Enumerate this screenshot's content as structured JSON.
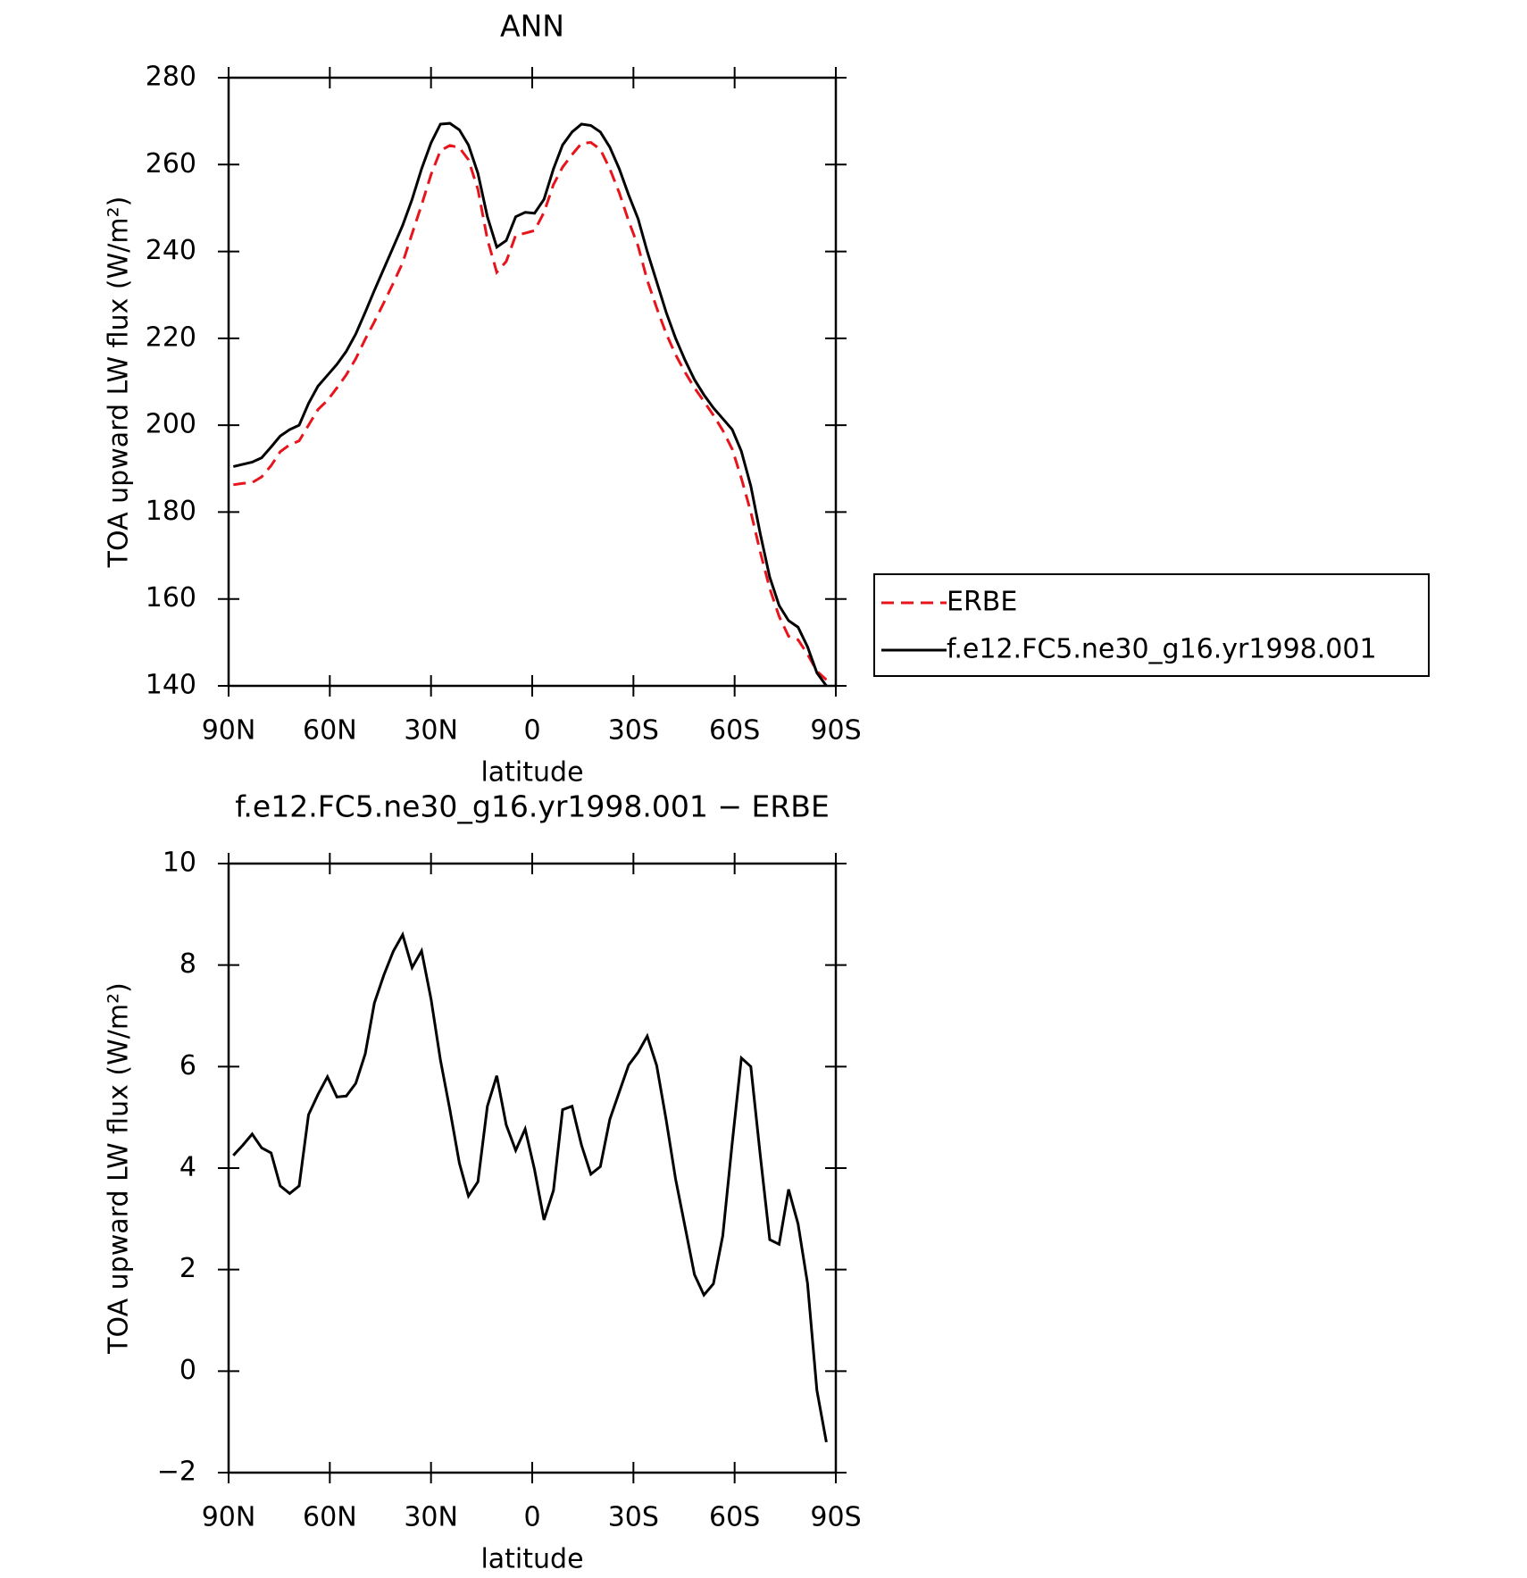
{
  "chart_data": [
    {
      "type": "line",
      "title": "ANN",
      "xlabel": "latitude",
      "ylabel": "TOA upward LW flux (W/m²)",
      "x": [
        88.6,
        85.8,
        83.0,
        80.2,
        77.4,
        74.7,
        71.9,
        69.1,
        66.3,
        63.5,
        60.7,
        57.9,
        55.1,
        52.3,
        49.5,
        46.8,
        44.0,
        41.2,
        38.4,
        35.6,
        32.8,
        30.0,
        27.2,
        24.4,
        21.6,
        18.9,
        16.1,
        13.3,
        10.5,
        7.7,
        4.9,
        2.1,
        -0.7,
        -3.5,
        -6.3,
        -9.0,
        -11.8,
        -14.6,
        -17.4,
        -20.2,
        -23.0,
        -25.8,
        -28.6,
        -31.4,
        -34.1,
        -36.9,
        -39.7,
        -42.5,
        -45.3,
        -48.1,
        -50.9,
        -53.7,
        -56.5,
        -59.3,
        -62.0,
        -64.8,
        -67.6,
        -70.4,
        -73.2,
        -76.0,
        -78.8,
        -81.6,
        -84.4,
        -87.2
      ],
      "series": [
        {
          "name": "ERBE",
          "color": "#e8141b",
          "dashed": true,
          "values": [
            186.3,
            186.6,
            186.8,
            188.1,
            190.7,
            193.9,
            195.5,
            196.4,
            200.0,
            203.6,
            205.7,
            208.6,
            211.6,
            215.3,
            219.8,
            223.8,
            228.2,
            232.7,
            237.4,
            244.1,
            250.7,
            257.7,
            263.2,
            264.4,
            263.9,
            261.1,
            254.3,
            242.8,
            235.2,
            237.7,
            243.7,
            244.2,
            244.8,
            249.0,
            255.4,
            259.4,
            262.3,
            264.9,
            265.1,
            263.5,
            259.0,
            253.5,
            247.0,
            241.2,
            233.4,
            227.0,
            221.1,
            216.2,
            212.2,
            208.6,
            205.5,
            202.3,
            198.8,
            194.5,
            187.8,
            180.0,
            170.8,
            162.4,
            156.0,
            151.4,
            150.6,
            147.3,
            143.4,
            141.4
          ]
        },
        {
          "name": "f.e12.FC5.ne30_g16.yr1998.001",
          "color": "#000000",
          "dashed": false,
          "values": [
            190.5,
            191,
            191.5,
            192.5,
            195,
            197.5,
            199,
            200,
            205,
            209,
            211.5,
            214,
            217,
            221,
            226,
            231,
            236,
            241,
            246,
            252,
            259,
            265,
            269.3,
            269.5,
            268,
            264.5,
            258,
            248,
            241,
            242.5,
            248,
            249,
            248.8,
            252,
            259,
            264.5,
            267.5,
            269.3,
            269,
            267.5,
            264,
            259,
            253,
            247.5,
            240,
            233,
            226,
            220,
            215,
            210.5,
            207,
            204,
            201.5,
            199,
            194,
            186,
            175,
            165,
            158.5,
            155,
            153.5,
            149,
            143,
            140
          ]
        }
      ],
      "xlim": [
        90,
        -90
      ],
      "xticks": [
        {
          "value": 90,
          "label": "90N"
        },
        {
          "value": 60,
          "label": "60N"
        },
        {
          "value": 30,
          "label": "30N"
        },
        0,
        {
          "value": -30,
          "label": "30S"
        },
        {
          "value": -60,
          "label": "60S"
        },
        {
          "value": -90,
          "label": "90S"
        }
      ],
      "ylim": [
        140,
        280
      ],
      "yticks": [
        140,
        160,
        180,
        200,
        220,
        240,
        260,
        280
      ],
      "legend": "outside-right"
    },
    {
      "type": "line",
      "title": "f.e12.FC5.ne30_g16.yr1998.001 − ERBE",
      "xlabel": "latitude",
      "ylabel": "TOA upward LW flux (W/m²)",
      "x": [
        88.6,
        85.8,
        83.0,
        80.2,
        77.4,
        74.7,
        71.9,
        69.1,
        66.3,
        63.5,
        60.7,
        57.9,
        55.1,
        52.3,
        49.5,
        46.8,
        44.0,
        41.2,
        38.4,
        35.6,
        32.8,
        30.0,
        27.2,
        24.4,
        21.6,
        18.9,
        16.1,
        13.3,
        10.5,
        7.7,
        4.9,
        2.1,
        -0.7,
        -3.5,
        -6.3,
        -9.0,
        -11.8,
        -14.6,
        -17.4,
        -20.2,
        -23.0,
        -25.8,
        -28.6,
        -31.4,
        -34.1,
        -36.9,
        -39.7,
        -42.5,
        -45.3,
        -48.1,
        -50.9,
        -53.7,
        -56.5,
        -59.3,
        -62.0,
        -64.8,
        -67.6,
        -70.4,
        -73.2,
        -76.0,
        -78.8,
        -81.6,
        -84.4,
        -87.2
      ],
      "values": [
        4.25,
        4.45,
        4.67,
        4.4,
        4.3,
        3.65,
        3.5,
        3.65,
        5.05,
        5.45,
        5.8,
        5.4,
        5.42,
        5.67,
        6.25,
        7.25,
        7.8,
        8.27,
        8.6,
        7.95,
        8.28,
        7.33,
        6.13,
        5.15,
        4.1,
        3.45,
        3.73,
        5.22,
        5.82,
        4.85,
        4.35,
        4.77,
        3.97,
        2.98,
        3.56,
        5.15,
        5.22,
        4.45,
        3.88,
        4.03,
        4.96,
        5.5,
        6.03,
        6.28,
        6.6,
        6.02,
        4.95,
        3.78,
        2.85,
        1.9,
        1.5,
        1.72,
        2.67,
        4.5,
        6.17,
        6.0,
        4.25,
        2.59,
        2.5,
        3.58,
        2.9,
        1.73,
        -0.38,
        -1.4
      ],
      "color": "#000000",
      "xlim": [
        90,
        -90
      ],
      "xticks": [
        {
          "value": 90,
          "label": "90N"
        },
        {
          "value": 60,
          "label": "60N"
        },
        {
          "value": 30,
          "label": "30N"
        },
        0,
        {
          "value": -30,
          "label": "30S"
        },
        {
          "value": -60,
          "label": "60S"
        },
        {
          "value": -90,
          "label": "90S"
        }
      ],
      "ylim": [
        -2,
        10
      ],
      "yticks": [
        {
          "value": -2,
          "label": "−2"
        },
        0,
        2,
        4,
        6,
        8,
        10
      ]
    }
  ]
}
